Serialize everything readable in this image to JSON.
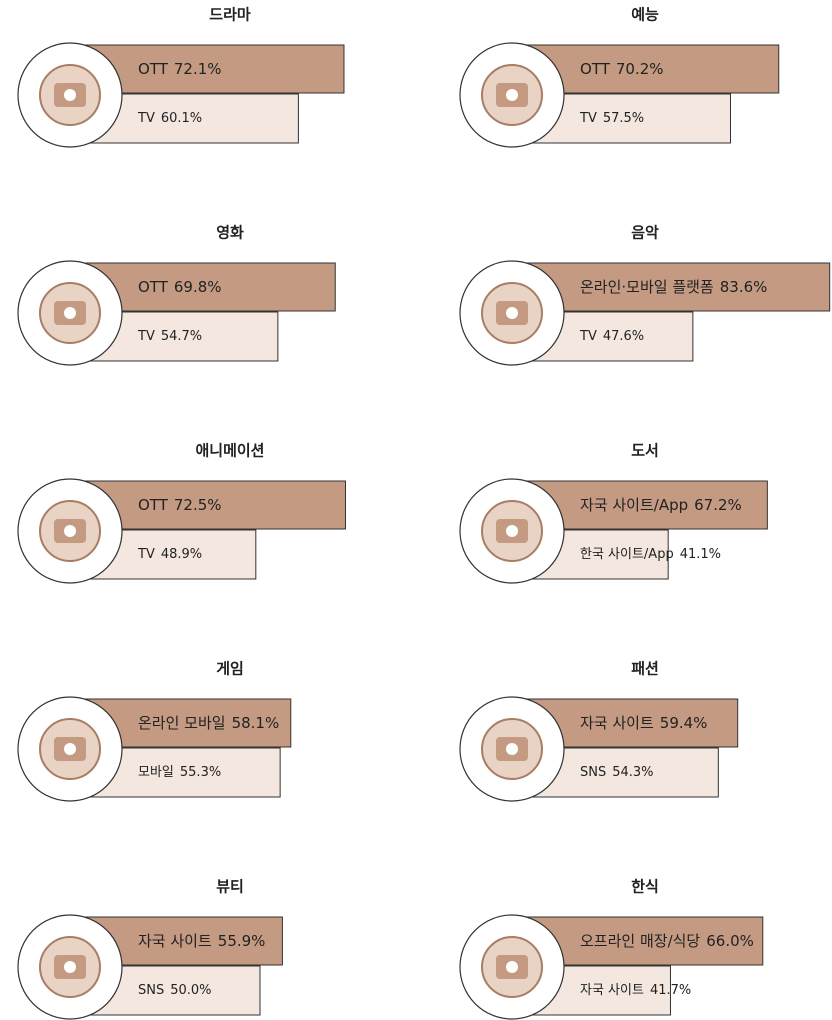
{
  "panels": [
    {
      "title": "드라마",
      "categories": [
        "OTT",
        "TV"
      ],
      "values": [
        72.1,
        60.1
      ],
      "value_labels": [
        "72.1%",
        "60.1%"
      ]
    },
    {
      "title": "예능",
      "categories": [
        "OTT",
        "TV"
      ],
      "values": [
        70.2,
        57.5
      ],
      "value_labels": [
        "70.2%",
        "57.5%"
      ]
    },
    {
      "title": "영화",
      "categories": [
        "OTT",
        "TV"
      ],
      "values": [
        69.8,
        54.7
      ],
      "value_labels": [
        "69.8%",
        "54.7%"
      ]
    },
    {
      "title": "음악",
      "categories": [
        "온라인·모바일 플랫폼",
        "TV"
      ],
      "values": [
        83.6,
        47.6
      ],
      "value_labels": [
        "83.6%",
        "47.6%"
      ]
    },
    {
      "title": "애니메이션",
      "categories": [
        "OTT",
        "TV"
      ],
      "values": [
        72.5,
        48.9
      ],
      "value_labels": [
        "72.5%",
        "48.9%"
      ]
    },
    {
      "title": "도서",
      "categories": [
        "자국 사이트/App",
        "한국 사이트/App"
      ],
      "values": [
        67.2,
        41.1
      ],
      "value_labels": [
        "67.2%",
        "41.1%"
      ]
    },
    {
      "title": "게임",
      "categories": [
        "온라인 모바일",
        "모바일"
      ],
      "values": [
        58.1,
        55.3
      ],
      "value_labels": [
        "58.1%",
        "55.3%"
      ]
    },
    {
      "title": "패션",
      "categories": [
        "자국 사이트",
        "SNS"
      ],
      "values": [
        59.4,
        54.3
      ],
      "value_labels": [
        "59.4%",
        "54.3%"
      ]
    },
    {
      "title": "뷰티",
      "categories": [
        "자국 사이트",
        "SNS"
      ],
      "values": [
        55.9,
        50.0
      ],
      "value_labels": [
        "55.9%",
        "50.0%"
      ]
    },
    {
      "title": "한식",
      "categories": [
        "오프라인 매장/식당",
        "자국 사이트"
      ],
      "values": [
        66.0,
        41.7
      ],
      "value_labels": [
        "66.0%",
        "41.7%"
      ]
    }
  ]
}
